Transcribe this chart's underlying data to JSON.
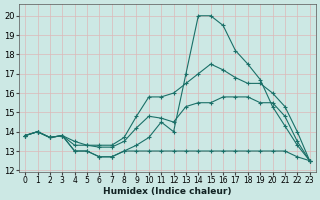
{
  "xlabel": "Humidex (Indice chaleur)",
  "xlim": [
    -0.5,
    23.5
  ],
  "ylim": [
    11.9,
    20.6
  ],
  "yticks": [
    12,
    13,
    14,
    15,
    16,
    17,
    18,
    19,
    20
  ],
  "xticks": [
    0,
    1,
    2,
    3,
    4,
    5,
    6,
    7,
    8,
    9,
    10,
    11,
    12,
    13,
    14,
    15,
    16,
    17,
    18,
    19,
    20,
    21,
    22,
    23
  ],
  "bg_color": "#cce8e4",
  "grid_color": "#ddb8b8",
  "line_color": "#1a7068",
  "lines": [
    [
      13.8,
      14.0,
      13.7,
      13.8,
      13.0,
      13.0,
      12.7,
      12.7,
      13.0,
      13.3,
      13.7,
      14.5,
      14.0,
      17.0,
      20.0,
      20.0,
      19.5,
      18.2,
      17.5,
      16.7,
      15.3,
      14.3,
      13.3,
      12.5
    ],
    [
      13.8,
      14.0,
      13.7,
      13.8,
      13.3,
      13.3,
      13.2,
      13.2,
      13.5,
      14.2,
      14.8,
      14.7,
      14.5,
      15.3,
      15.5,
      15.5,
      15.8,
      15.8,
      15.8,
      15.5,
      15.5,
      14.8,
      13.5,
      12.5
    ],
    [
      13.8,
      14.0,
      13.7,
      13.8,
      13.5,
      13.3,
      13.3,
      13.3,
      13.7,
      14.8,
      15.8,
      15.8,
      16.0,
      16.5,
      17.0,
      17.5,
      17.2,
      16.8,
      16.5,
      16.5,
      16.0,
      15.3,
      14.0,
      12.5
    ],
    [
      13.8,
      14.0,
      13.7,
      13.8,
      13.0,
      13.0,
      12.7,
      12.7,
      13.0,
      13.0,
      13.0,
      13.0,
      13.0,
      13.0,
      13.0,
      13.0,
      13.0,
      13.0,
      13.0,
      13.0,
      13.0,
      13.0,
      12.7,
      12.5
    ]
  ]
}
